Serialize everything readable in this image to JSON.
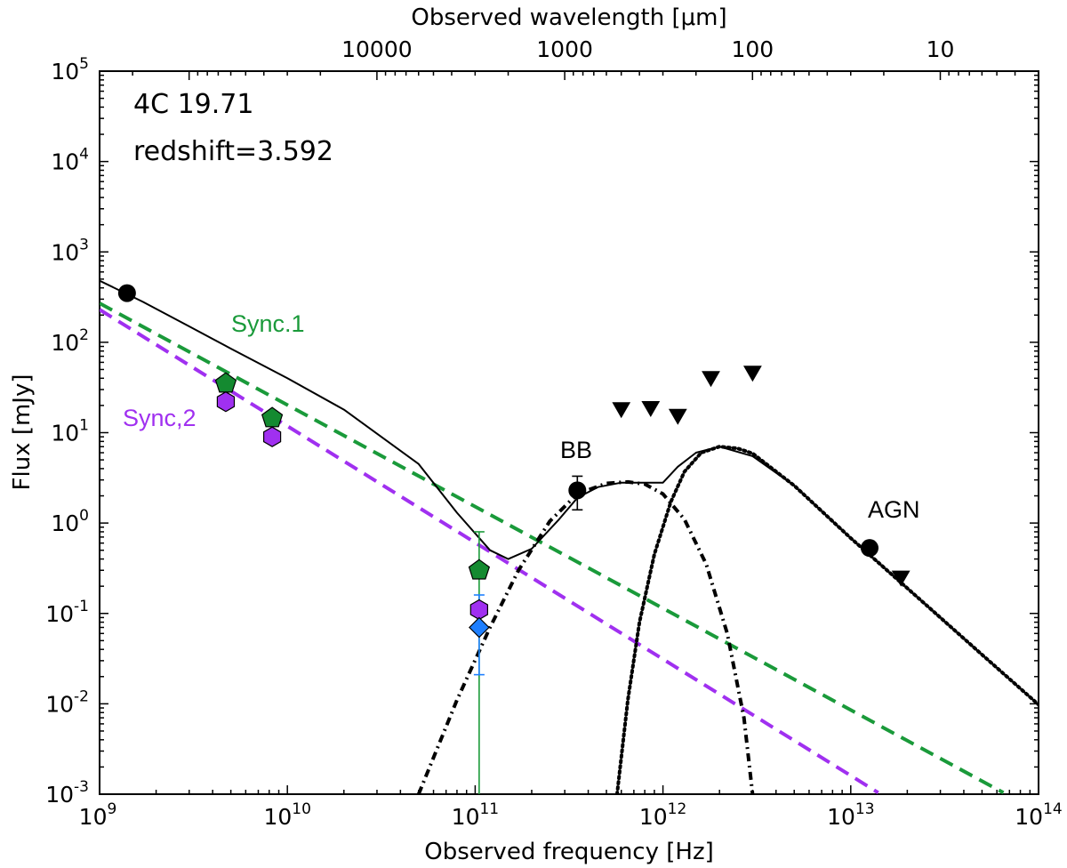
{
  "chart_data": {
    "type": "scatter",
    "title": "",
    "xlabel": "Observed frequency [Hz]",
    "ylabel": "Flux [mJy]",
    "top_xlabel": "Observed wavelength [μm]",
    "xscale": "log",
    "yscale": "log",
    "xlim": [
      1000000000.0,
      100000000000000.0
    ],
    "ylim": [
      0.001,
      100000
    ],
    "x_ticks": [
      {
        "value": 1000000000.0,
        "base": "10",
        "exp": "9"
      },
      {
        "value": 10000000000.0,
        "base": "10",
        "exp": "10"
      },
      {
        "value": 100000000000.0,
        "base": "10",
        "exp": "11"
      },
      {
        "value": 1000000000000.0,
        "base": "10",
        "exp": "12"
      },
      {
        "value": 10000000000000.0,
        "base": "10",
        "exp": "13"
      },
      {
        "value": 100000000000000.0,
        "base": "10",
        "exp": "14"
      }
    ],
    "y_ticks": [
      {
        "value": 0.001,
        "base": "10",
        "exp": "-3"
      },
      {
        "value": 0.01,
        "base": "10",
        "exp": "-2"
      },
      {
        "value": 0.1,
        "base": "10",
        "exp": "-1"
      },
      {
        "value": 1,
        "base": "10",
        "exp": "0"
      },
      {
        "value": 10,
        "base": "10",
        "exp": "1"
      },
      {
        "value": 100,
        "base": "10",
        "exp": "2"
      },
      {
        "value": 1000,
        "base": "10",
        "exp": "3"
      },
      {
        "value": 10000,
        "base": "10",
        "exp": "4"
      },
      {
        "value": 100000,
        "base": "10",
        "exp": "5"
      }
    ],
    "top_ticks": [
      {
        "wavelength_um": 10000,
        "label": "10000"
      },
      {
        "wavelength_um": 1000,
        "label": "1000"
      },
      {
        "wavelength_um": 100,
        "label": "100"
      },
      {
        "wavelength_um": 10,
        "label": "10"
      }
    ],
    "annotations": {
      "source": "4C 19.71",
      "redshift": "redshift=3.592",
      "sync1": "Sync.1",
      "sync2": "Sync,2",
      "bb": "BB",
      "agn": "AGN"
    },
    "colors": {
      "sync1": "#1a9a3a",
      "sync2": "#a030f0",
      "marker_green": "#148a30",
      "marker_purple": "#a030f0",
      "marker_blue": "#1e7fff",
      "black": "#000000"
    },
    "series": [
      {
        "name": "Sync.1 model",
        "style": "dashed",
        "color": "#1a9a3a",
        "x": [
          1000000000.0,
          65000000000000.0
        ],
        "y": [
          270,
          0.00104
        ]
      },
      {
        "name": "Sync,2 model",
        "style": "dashed",
        "color": "#a030f0",
        "x": [
          1000000000.0,
          14000000000000.0
        ],
        "y": [
          230,
          0.00104
        ]
      },
      {
        "name": "Total model",
        "style": "solid",
        "color": "#000000",
        "x": [
          1000000000.0,
          1700000000.0,
          3000000000.0,
          5000000000.0,
          10000000000.0,
          20000000000.0,
          50000000000.0,
          80000000000.0,
          120000000000.0,
          150000000000.0,
          200000000000.0,
          280000000000.0,
          350000000000.0,
          450000000000.0,
          600000000000.0,
          800000000000.0,
          1000000000000.0,
          1200000000000.0,
          1500000000000.0,
          2000000000000.0,
          3000000000000.0,
          5000000000000.0,
          10000000000000.0,
          20000000000000.0,
          50000000000000.0,
          100000000000000.0
        ],
        "y": [
          480,
          280,
          150,
          85,
          40,
          18,
          4.5,
          1.3,
          0.5,
          0.4,
          0.52,
          1.1,
          1.9,
          2.5,
          2.8,
          2.8,
          2.8,
          4.2,
          6,
          7,
          5.5,
          2.6,
          0.68,
          0.19,
          0.035,
          0.0098
        ]
      },
      {
        "name": "BB model",
        "style": "dashdot",
        "color": "#000000",
        "x": [
          50000000000.0,
          80000000000.0,
          120000000000.0,
          170000000000.0,
          250000000000.0,
          350000000000.0,
          500000000000.0,
          650000000000.0,
          800000000000.0,
          1000000000000.0,
          1300000000000.0,
          1700000000000.0,
          2200000000000.0,
          2700000000000.0,
          3000000000000.0
        ],
        "y": [
          0.001,
          0.011,
          0.07,
          0.3,
          1.05,
          2.1,
          2.75,
          2.85,
          2.7,
          2.1,
          1.1,
          0.35,
          0.06,
          0.007,
          0.001
        ]
      },
      {
        "name": "AGN model",
        "style": "dotted",
        "color": "#000000",
        "x": [
          570000000000.0,
          650000000000.0,
          750000000000.0,
          900000000000.0,
          1100000000000.0,
          1300000000000.0,
          1600000000000.0,
          2000000000000.0,
          2500000000000.0,
          3000000000000.0,
          5000000000000.0,
          10000000000000.0,
          20000000000000.0,
          50000000000000.0,
          100000000000000.0
        ],
        "y": [
          0.001,
          0.011,
          0.08,
          0.45,
          1.7,
          3.7,
          6.0,
          7.0,
          6.7,
          5.9,
          2.6,
          0.68,
          0.19,
          0.035,
          0.0098
        ]
      },
      {
        "name": "Detections",
        "marker": "circle",
        "color": "#000000",
        "x": [
          1400000000.0,
          350000000000.0,
          12600000000000.0
        ],
        "y": [
          350,
          2.3,
          0.53
        ]
      },
      {
        "name": "Upper limits",
        "marker": "triangle-down",
        "color": "#000000",
        "x": [
          600000000000.0,
          860000000000.0,
          1200000000000.0,
          1800000000000.0,
          3000000000000.0,
          18500000000000.0
        ],
        "y": [
          19,
          19.5,
          16,
          42,
          48,
          0.26
        ]
      },
      {
        "name": "Sync.1 data",
        "marker": "pentagon",
        "color": "#148a30",
        "x": [
          4700000000.0,
          8300000000.0,
          105000000000.0
        ],
        "y": [
          35,
          14.5,
          0.3
        ]
      },
      {
        "name": "Sync,2 data",
        "marker": "hexagon",
        "color": "#a030f0",
        "x": [
          4700000000.0,
          8300000000.0,
          105000000000.0
        ],
        "y": [
          22,
          9,
          0.11
        ]
      },
      {
        "name": "Blue point",
        "marker": "diamond",
        "color": "#1e7fff",
        "x": [
          105000000000.0
        ],
        "y": [
          0.07
        ]
      }
    ],
    "error_bars": [
      {
        "x": 105000000000.0,
        "ylow": 0.001,
        "yhigh": 0.8,
        "color": "#1a9a3a"
      },
      {
        "x": 105000000000.0,
        "ylow": 0.021,
        "yhigh": 0.16,
        "color": "#1e7fff"
      },
      {
        "x": 350000000000.0,
        "ylow": 1.4,
        "yhigh": 3.3,
        "color": "#000000"
      }
    ]
  }
}
